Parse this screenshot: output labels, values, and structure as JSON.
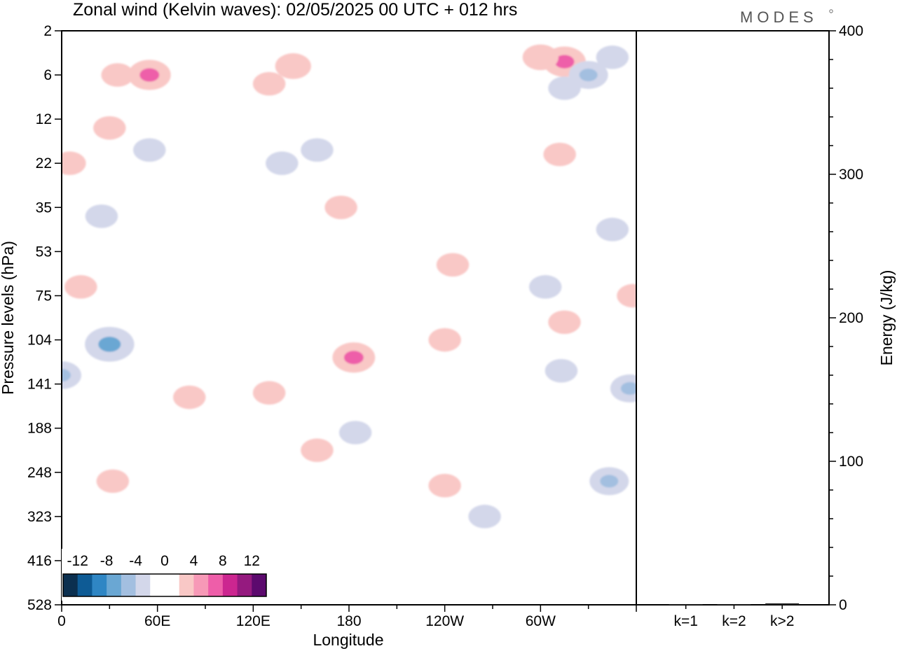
{
  "title": "Zonal wind (Kelvin waves):  02/05/2025  00 UTC  + 012 hrs",
  "logo": "MODES",
  "chart_data": [
    {
      "type": "heatmap",
      "title": "Zonal wind (Kelvin waves):  02/05/2025  00 UTC  + 012 hrs",
      "xlabel": "Longitude",
      "ylabel": "Pressure levels (hPa)",
      "x_ticks": [
        "0",
        "60E",
        "120E",
        "180",
        "120W",
        "60W"
      ],
      "x_range_deg_east": [
        0,
        360
      ],
      "y_ticks": [
        "2",
        "6",
        "12",
        "22",
        "35",
        "53",
        "75",
        "104",
        "141",
        "188",
        "248",
        "323",
        "416",
        "528"
      ],
      "colorbar": {
        "labels": [
          "-12",
          "-8",
          "-4",
          "0",
          "4",
          "8",
          "12"
        ],
        "colors": [
          "#0b2f4f",
          "#0e5b95",
          "#2f86c4",
          "#6aa7d3",
          "#a3bfe0",
          "#d3d7ea",
          "#ffffff",
          "#ffffff",
          "#f9c8c6",
          "#f799b7",
          "#ee5ea9",
          "#cc2690",
          "#951a7f",
          "#5c0a6e"
        ]
      },
      "series": [
        {
          "sign": "positive",
          "lon": 315,
          "level_idx": 0.7,
          "value": 6
        },
        {
          "sign": "positive",
          "lon": 300,
          "level_idx": 0.6,
          "value": 4
        },
        {
          "sign": "negative",
          "lon": 330,
          "level_idx": 1.0,
          "value": -5
        },
        {
          "sign": "negative",
          "lon": 315,
          "level_idx": 1.3,
          "value": -3
        },
        {
          "sign": "negative",
          "lon": 345,
          "level_idx": 0.6,
          "value": -3
        },
        {
          "sign": "positive",
          "lon": 55,
          "level_idx": 1.0,
          "value": 6
        },
        {
          "sign": "positive",
          "lon": 35,
          "level_idx": 1.0,
          "value": 3
        },
        {
          "sign": "positive",
          "lon": 5,
          "level_idx": 3.0,
          "value": 3
        },
        {
          "sign": "positive",
          "lon": 30,
          "level_idx": 2.2,
          "value": 3
        },
        {
          "sign": "negative",
          "lon": 55,
          "level_idx": 2.7,
          "value": -3
        },
        {
          "sign": "negative",
          "lon": 25,
          "level_idx": 4.2,
          "value": -3
        },
        {
          "sign": "positive",
          "lon": 130,
          "level_idx": 1.2,
          "value": 3
        },
        {
          "sign": "positive",
          "lon": 145,
          "level_idx": 0.8,
          "value": 4
        },
        {
          "sign": "negative",
          "lon": 138,
          "level_idx": 3.0,
          "value": -3
        },
        {
          "sign": "negative",
          "lon": 160,
          "level_idx": 2.7,
          "value": -3
        },
        {
          "sign": "positive",
          "lon": 175,
          "level_idx": 4.0,
          "value": 3
        },
        {
          "sign": "positive",
          "lon": 312,
          "level_idx": 2.8,
          "value": 3
        },
        {
          "sign": "positive",
          "lon": 245,
          "level_idx": 5.3,
          "value": 3
        },
        {
          "sign": "negative",
          "lon": 303,
          "level_idx": 5.8,
          "value": -3
        },
        {
          "sign": "negative",
          "lon": 345,
          "level_idx": 4.5,
          "value": -3
        },
        {
          "sign": "positive",
          "lon": 12,
          "level_idx": 5.8,
          "value": 3
        },
        {
          "sign": "negative",
          "lon": 30,
          "level_idx": 7.1,
          "value": -8
        },
        {
          "sign": "negative",
          "lon": 0,
          "level_idx": 7.8,
          "value": -5
        },
        {
          "sign": "positive",
          "lon": 183,
          "level_idx": 7.4,
          "value": 6
        },
        {
          "sign": "positive",
          "lon": 160,
          "level_idx": 9.5,
          "value": 3
        },
        {
          "sign": "positive",
          "lon": 130,
          "level_idx": 8.2,
          "value": 3
        },
        {
          "sign": "positive",
          "lon": 240,
          "level_idx": 7.0,
          "value": 3
        },
        {
          "sign": "positive",
          "lon": 315,
          "level_idx": 6.6,
          "value": 3
        },
        {
          "sign": "positive",
          "lon": 358,
          "level_idx": 6.0,
          "value": 3
        },
        {
          "sign": "negative",
          "lon": 313,
          "level_idx": 7.7,
          "value": -3
        },
        {
          "sign": "negative",
          "lon": 356,
          "level_idx": 8.1,
          "value": -5
        },
        {
          "sign": "negative",
          "lon": 343,
          "level_idx": 10.2,
          "value": -5
        },
        {
          "sign": "positive",
          "lon": 240,
          "level_idx": 10.3,
          "value": 3
        },
        {
          "sign": "negative",
          "lon": 265,
          "level_idx": 11.0,
          "value": -3
        },
        {
          "sign": "negative",
          "lon": 184,
          "level_idx": 9.1,
          "value": -3
        },
        {
          "sign": "positive",
          "lon": 32,
          "level_idx": 10.2,
          "value": 3
        },
        {
          "sign": "positive",
          "lon": 80,
          "level_idx": 8.3,
          "value": 3
        }
      ]
    },
    {
      "type": "bar",
      "ylabel": "Energy (J/kg)",
      "categories": [
        "k=1",
        "k=2",
        "k>2"
      ],
      "values": [
        0.5,
        0.5,
        1
      ],
      "ylim": [
        0,
        400
      ],
      "y_ticks": [
        "0",
        "100",
        "200",
        "300",
        "400"
      ]
    }
  ]
}
